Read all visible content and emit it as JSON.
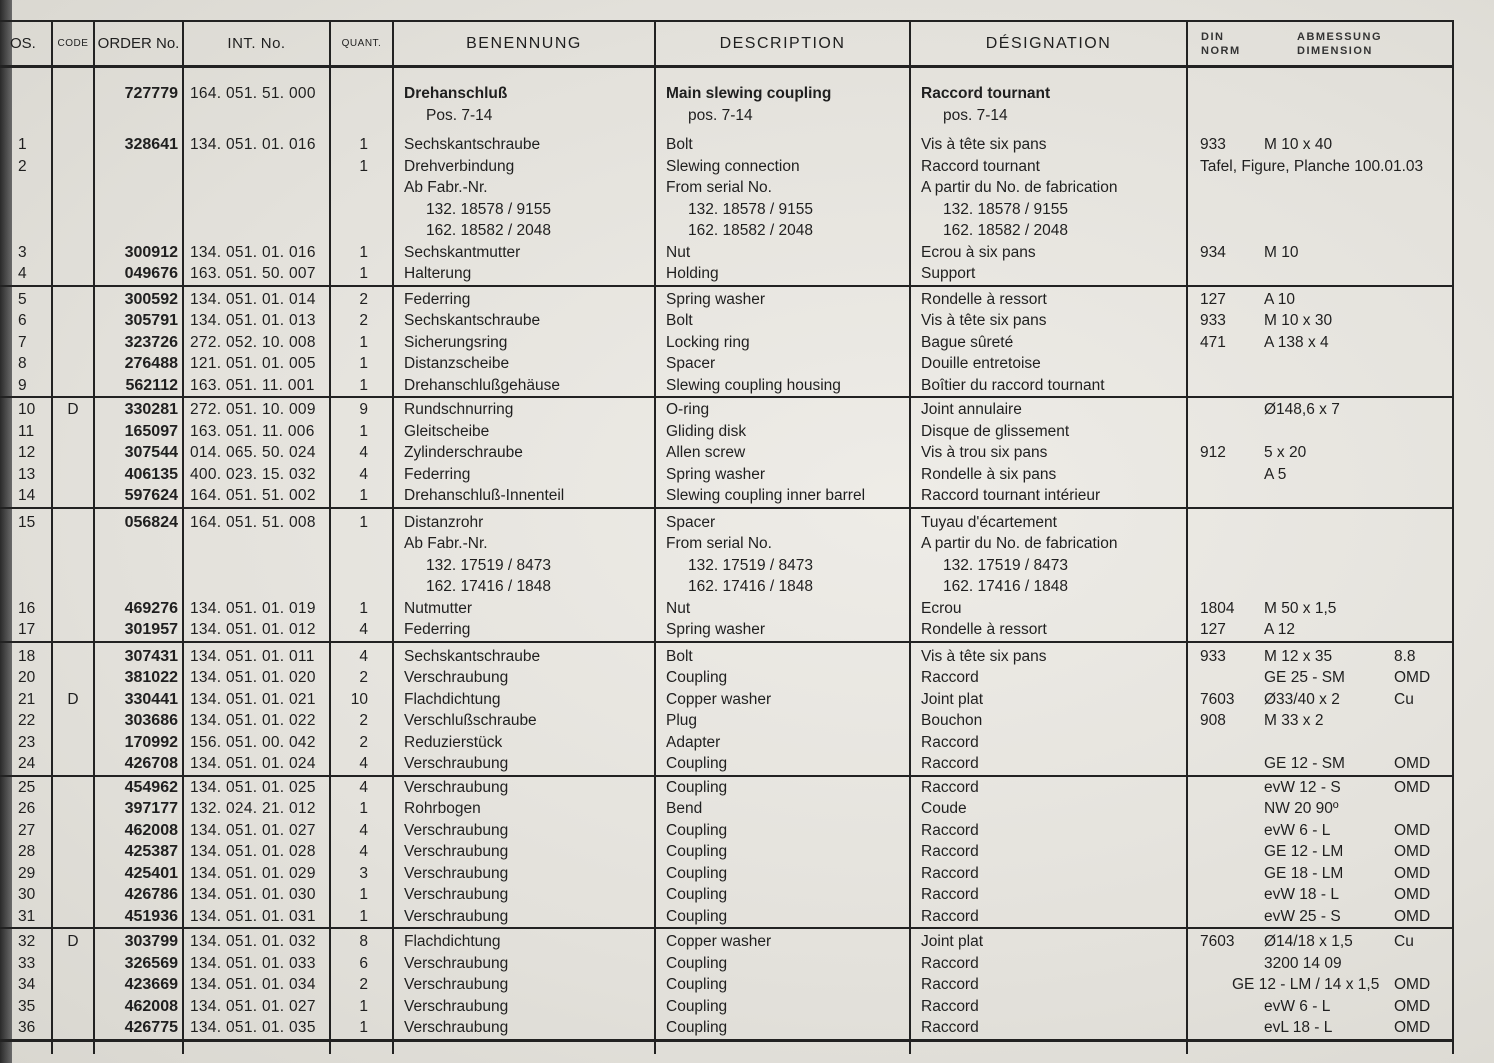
{
  "header": {
    "pos": "OS.",
    "code": "CODE",
    "order": "ORDER No.",
    "int": "INT. No.",
    "qty": "QUANT.",
    "benennung": "BENENNUNG",
    "description": "DESCRIPTION",
    "designation": "DÉSIGNATION",
    "din_1": "DIN",
    "din_2": "NORM",
    "dim_1": "ABMESSUNG",
    "dim_2": "DIMENSION"
  },
  "groups": [
    {
      "pad": 15,
      "rows": [
        {
          "order": "727779",
          "int": "164. 051. 51. 000",
          "ben": "Drehanschluß",
          "desc": "Main slewing coupling",
          "des": "Raccord tournant",
          "bold": true
        },
        {
          "ben": "Pos.  7-14",
          "desc": "pos.  7-14",
          "des": "pos.  7-14",
          "indent": true,
          "spacer_after": true
        },
        {
          "pos": "1",
          "order": "328641",
          "int": "134. 051. 01. 016",
          "qty": "1",
          "ben": "Sechskantschraube",
          "desc": "Bolt",
          "des": "Vis à tête six pans",
          "din": "933",
          "dim": "M 10 x 40"
        },
        {
          "pos": "2",
          "qty": "1",
          "ben": "Drehverbindung",
          "desc": "Slewing connection",
          "des": "Raccord tournant",
          "din": "Tafel, Figure, Planche  100.01.03"
        },
        {
          "ben": "Ab Fabr.-Nr.",
          "desc": "From serial No.",
          "des": "A partir du No. de fabrication"
        },
        {
          "ben": "132. 18578 / 9155",
          "desc": "132. 18578 / 9155",
          "des": "132. 18578 / 9155",
          "indent": true
        },
        {
          "ben": "162. 18582 / 2048",
          "desc": "162. 18582 / 2048",
          "des": "162. 18582 / 2048",
          "indent": true
        },
        {
          "pos": "3",
          "order": "300912",
          "int": "134. 051. 01. 016",
          "qty": "1",
          "ben": "Sechskantmutter",
          "desc": "Nut",
          "des": "Ecrou à six pans",
          "din": "934",
          "dim": "M 10"
        },
        {
          "pos": "4",
          "order": "049676",
          "int": "163. 051. 50. 007",
          "qty": "1",
          "ben": "Halterung",
          "desc": "Holding",
          "des": "Support"
        }
      ]
    },
    {
      "pad": 2,
      "rows": [
        {
          "pos": "5",
          "order": "300592",
          "int": "134. 051. 01. 014",
          "qty": "2",
          "ben": "Federring",
          "desc": "Spring washer",
          "des": "Rondelle à ressort",
          "din": "127",
          "dim": "A 10"
        },
        {
          "pos": "6",
          "order": "305791",
          "int": "134. 051. 01. 013",
          "qty": "2",
          "ben": "Sechskantschraube",
          "desc": "Bolt",
          "des": "Vis à tête six pans",
          "din": "933",
          "dim": "M 10 x 30"
        },
        {
          "pos": "7",
          "order": "323726",
          "int": "272. 052. 10. 008",
          "qty": "1",
          "ben": "Sicherungsring",
          "desc": "Locking ring",
          "des": "Bague sûreté",
          "din": "471",
          "dim": "A  138 x 4"
        },
        {
          "pos": "8",
          "order": "276488",
          "int": "121. 051. 01. 005",
          "qty": "1",
          "ben": "Distanzscheibe",
          "desc": "Spacer",
          "des": "Douille entretoise"
        },
        {
          "pos": "9",
          "order": "562112",
          "int": "163. 051. 11. 001",
          "qty": "1",
          "ben": "Drehanschlußgehäuse",
          "desc": "Slewing coupling housing",
          "des": "Boîtier du raccord tournant"
        }
      ]
    },
    {
      "pad": 1,
      "rows": [
        {
          "pos": "10",
          "code": "D",
          "order": "330281",
          "int": "272. 051. 10. 009",
          "qty": "9",
          "ben": "Rundschnurring",
          "desc": "O-ring",
          "des": "Joint annulaire",
          "dim": "Ø148,6 x 7"
        },
        {
          "pos": "11",
          "order": "165097",
          "int": "163. 051. 11. 006",
          "qty": "1",
          "ben": "Gleitscheibe",
          "desc": "Gliding disk",
          "des": "Disque de glissement"
        },
        {
          "pos": "12",
          "order": "307544",
          "int": "014. 065. 50. 024",
          "qty": "4",
          "ben": "Zylinderschraube",
          "desc": "Allen screw",
          "des": "Vis à trou six pans",
          "din": "912",
          "dim": "5 x 20"
        },
        {
          "pos": "13",
          "order": "406135",
          "int": "400. 023. 15. 032",
          "qty": "4",
          "ben": "Federring",
          "desc": "Spring washer",
          "des": "Rondelle à six pans",
          "dim": "A 5"
        },
        {
          "pos": "14",
          "order": "597624",
          "int": "164. 051. 51. 002",
          "qty": "1",
          "ben": "Drehanschluß-Innenteil",
          "desc": "Slewing coupling inner barrel",
          "des": "Raccord tournant intérieur"
        }
      ]
    },
    {
      "pad": 3,
      "rows": [
        {
          "pos": "15",
          "order": "056824",
          "int": "164. 051. 51. 008",
          "qty": "1",
          "ben": "Distanzrohr",
          "desc": "Spacer",
          "des": "Tuyau d'écartement"
        },
        {
          "ben": "Ab Fabr.-Nr.",
          "desc": "From serial No.",
          "des": "A partir du No. de fabrication"
        },
        {
          "ben": "132. 17519 / 8473",
          "desc": "132. 17519 / 8473",
          "des": "132. 17519 / 8473",
          "indent": true
        },
        {
          "ben": "162. 17416 / 1848",
          "desc": "162. 17416 / 1848",
          "des": "162. 17416 / 1848",
          "indent": true
        },
        {
          "pos": "16",
          "order": "469276",
          "int": "134. 051. 01. 019",
          "qty": "1",
          "ben": "Nutmutter",
          "desc": "Nut",
          "des": "Ecrou",
          "din": "1804",
          "dim": "M 50 x 1,5"
        },
        {
          "pos": "17",
          "order": "301957",
          "int": "134. 051. 01. 012",
          "qty": "4",
          "ben": "Federring",
          "desc": "Spring washer",
          "des": "Rondelle à ressort",
          "din": "127",
          "dim": "A 12"
        }
      ]
    },
    {
      "pad": 3,
      "rows": [
        {
          "pos": "18",
          "order": "307431",
          "int": "134. 051. 01. 011",
          "qty": "4",
          "ben": "Sechskantschraube",
          "desc": "Bolt",
          "des": "Vis à tête six pans",
          "din": "933",
          "dim": "M 12 x 35",
          "extra": "8.8"
        },
        {
          "pos": "20",
          "order": "381022",
          "int": "134. 051. 01. 020",
          "qty": "2",
          "ben": "Verschraubung",
          "desc": "Coupling",
          "des": "Raccord",
          "dim": "GE 25 - SM",
          "extra": "OMD"
        },
        {
          "pos": "21",
          "code": "D",
          "order": "330441",
          "int": "134. 051. 01. 021",
          "qty": "10",
          "ben": "Flachdichtung",
          "desc": "Copper washer",
          "des": "Joint plat",
          "din": "7603",
          "dim": "Ø33/40 x 2",
          "extra": "Cu"
        },
        {
          "pos": "22",
          "order": "303686",
          "int": "134. 051. 01. 022",
          "qty": "2",
          "ben": "Verschlußschraube",
          "desc": "Plug",
          "des": "Bouchon",
          "din": "908",
          "dim": "M 33 x 2"
        },
        {
          "pos": "23",
          "order": "170992",
          "int": "156. 051. 00. 042",
          "qty": "2",
          "ben": "Reduzierstück",
          "desc": "Adapter",
          "des": "Raccord"
        },
        {
          "pos": "24",
          "order": "426708",
          "int": "134. 051. 01. 024",
          "qty": "4",
          "ben": "Verschraubung",
          "desc": "Coupling",
          "des": "Raccord",
          "dim": "GE 12 - SM",
          "extra": "OMD"
        }
      ]
    },
    {
      "pad": 0,
      "rows": [
        {
          "pos": "25",
          "order": "454962",
          "int": "134. 051. 01. 025",
          "qty": "4",
          "ben": "Verschraubung",
          "desc": "Coupling",
          "des": "Raccord",
          "dim": "evW 12 - S",
          "extra": "OMD"
        },
        {
          "pos": "26",
          "order": "397177",
          "int": "132. 024. 21. 012",
          "qty": "1",
          "ben": "Rohrbogen",
          "desc": "Bend",
          "des": "Coude",
          "dim": "NW 20  90º"
        },
        {
          "pos": "27",
          "order": "462008",
          "int": "134. 051. 01. 027",
          "qty": "4",
          "ben": "Verschraubung",
          "desc": "Coupling",
          "des": "Raccord",
          "dim": "evW 6 - L",
          "extra": "OMD"
        },
        {
          "pos": "28",
          "order": "425387",
          "int": "134. 051. 01. 028",
          "qty": "4",
          "ben": "Verschraubung",
          "desc": "Coupling",
          "des": "Raccord",
          "dim": "GE 12 - LM",
          "extra": "OMD"
        },
        {
          "pos": "29",
          "order": "425401",
          "int": "134. 051. 01. 029",
          "qty": "3",
          "ben": "Verschraubung",
          "desc": "Coupling",
          "des": "Raccord",
          "dim": "GE 18 - LM",
          "extra": "OMD"
        },
        {
          "pos": "30",
          "order": "426786",
          "int": "134. 051. 01. 030",
          "qty": "1",
          "ben": "Verschraubung",
          "desc": "Coupling",
          "des": "Raccord",
          "dim": "evW 18 - L",
          "extra": "OMD"
        },
        {
          "pos": "31",
          "order": "451936",
          "int": "134. 051. 01. 031",
          "qty": "1",
          "ben": "Verschraubung",
          "desc": "Coupling",
          "des": "Raccord",
          "dim": "evW 25 - S",
          "extra": "OMD"
        }
      ]
    },
    {
      "pad": 2,
      "rows": [
        {
          "pos": "32",
          "code": "D",
          "order": "303799",
          "int": "134. 051. 01. 032",
          "qty": "8",
          "ben": "Flachdichtung",
          "desc": "Copper washer",
          "des": "Joint plat",
          "din": "7603",
          "dim": "Ø14/18 x 1,5",
          "extra": "Cu"
        },
        {
          "pos": "33",
          "order": "326569",
          "int": "134. 051. 01. 033",
          "qty": "6",
          "ben": "Verschraubung",
          "desc": "Coupling",
          "des": "Raccord",
          "dim": "3200 14 09"
        },
        {
          "pos": "34",
          "order": "423669",
          "int": "134. 051. 01. 034",
          "qty": "2",
          "ben": "Verschraubung",
          "desc": "Coupling",
          "des": "Raccord",
          "dim": "GE 12 - LM / 14 x 1,5",
          "extra": "OMD",
          "wide": true
        },
        {
          "pos": "35",
          "order": "462008",
          "int": "134. 051. 01. 027",
          "qty": "1",
          "ben": "Verschraubung",
          "desc": "Coupling",
          "des": "Raccord",
          "dim": "evW 6 - L",
          "extra": "OMD"
        },
        {
          "pos": "36",
          "order": "426775",
          "int": "134. 051. 01. 035",
          "qty": "1",
          "ben": "Verschraubung",
          "desc": "Coupling",
          "des": "Raccord",
          "dim": "evL 18 - L",
          "extra": "OMD"
        }
      ]
    }
  ]
}
